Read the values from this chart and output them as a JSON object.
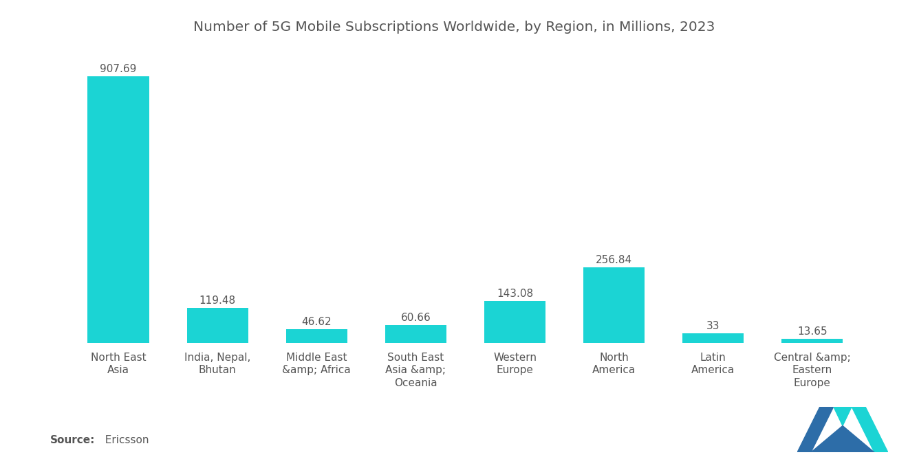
{
  "title": "Number of 5G Mobile Subscriptions Worldwide, by Region, in Millions, 2023",
  "categories": [
    "North East\nAsia",
    "India, Nepal,\nBhutan",
    "Middle East\n&amp; Africa",
    "South East\nAsia &amp;\nOceania",
    "Western\nEurope",
    "North\nAmerica",
    "Latin\nAmerica",
    "Central &amp;\nEastern\nEurope"
  ],
  "values": [
    907.69,
    119.48,
    46.62,
    60.66,
    143.08,
    256.84,
    33,
    13.65
  ],
  "bar_color": "#1BD4D4",
  "background_color": "#ffffff",
  "title_color": "#555555",
  "label_color": "#555555",
  "source_bold": "Source:",
  "source_text": "  Ericsson",
  "title_fontsize": 14.5,
  "label_fontsize": 11,
  "value_fontsize": 11,
  "source_fontsize": 11,
  "ylim": [
    0,
    980
  ],
  "logo_navy": "#2D6DA8",
  "logo_teal": "#1BD4D4"
}
